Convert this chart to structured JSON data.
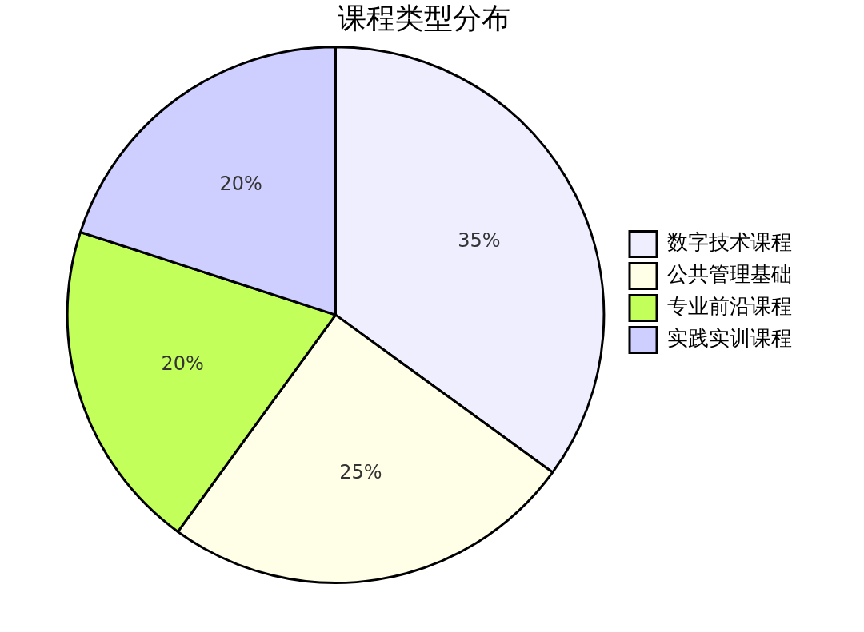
{
  "chart_data": {
    "type": "pie",
    "title": "课程类型分布",
    "categories": [
      "数字技术课程",
      "公共管理基础",
      "专业前沿课程",
      "实践实训课程"
    ],
    "values": [
      35,
      25,
      20,
      20
    ],
    "colors": [
      "#eeeefe",
      "#fffee6",
      "#c2ff5a",
      "#cfcfff"
    ],
    "value_labels": [
      "35%",
      "25%",
      "20%",
      "20%"
    ],
    "legend": "right"
  }
}
